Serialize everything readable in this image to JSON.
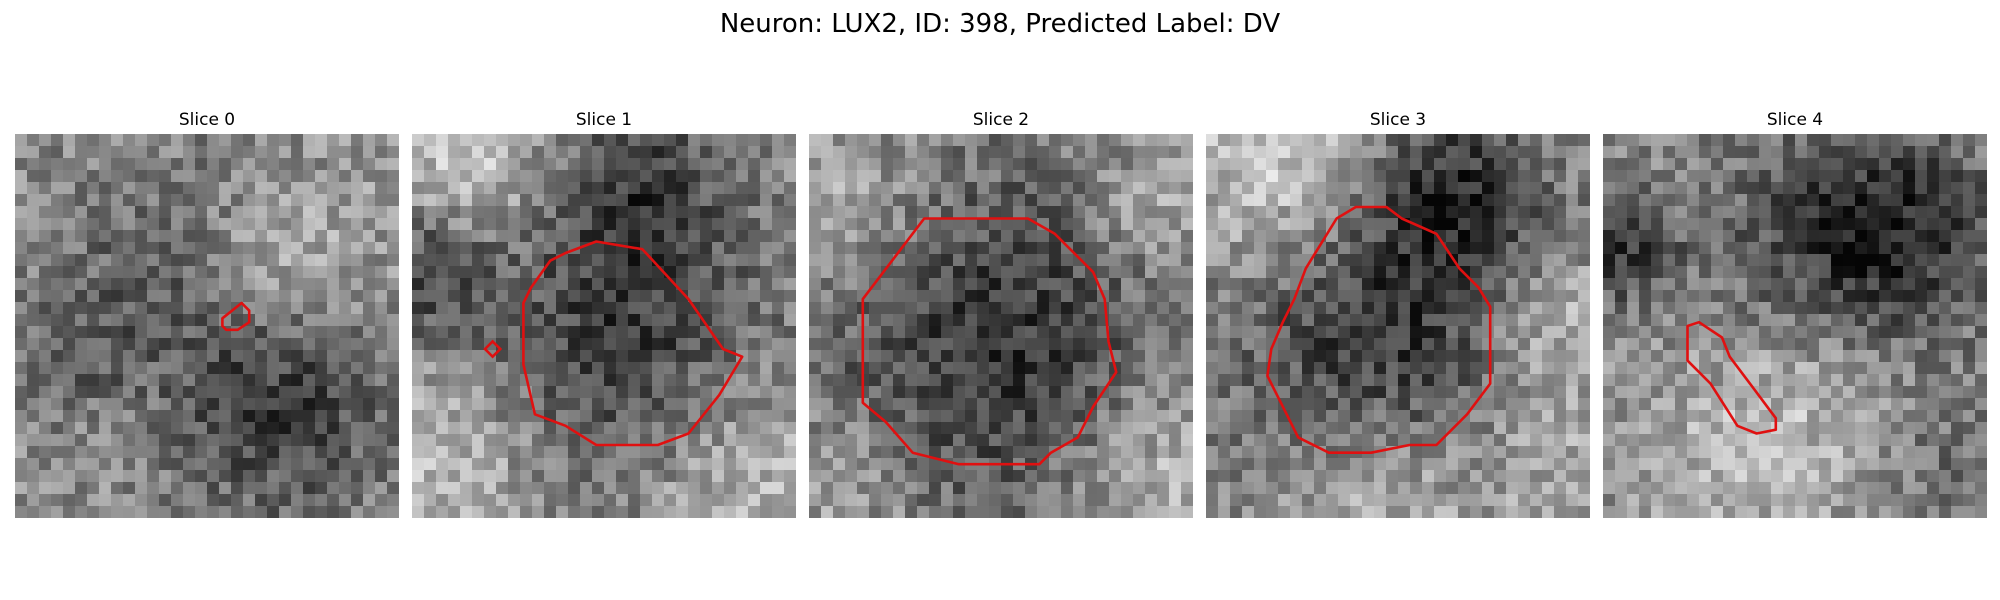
{
  "figure": {
    "title": "Neuron: LUX2, ID: 398, Predicted Label: DV"
  },
  "contour_color": "#e01010",
  "slices": [
    {
      "title": "Slice 0",
      "contour": [
        [
          0.54,
          0.48
        ],
        [
          0.59,
          0.44
        ],
        [
          0.61,
          0.46
        ],
        [
          0.61,
          0.49
        ],
        [
          0.58,
          0.51
        ],
        [
          0.55,
          0.51
        ],
        [
          0.54,
          0.5
        ]
      ],
      "blobs": [
        [
          0.45,
          0.36,
          0.2,
          -0.22
        ],
        [
          0.6,
          0.35,
          0.14,
          0.2
        ],
        [
          0.7,
          0.72,
          0.2,
          -0.3
        ],
        [
          0.15,
          0.55,
          0.12,
          -0.15
        ],
        [
          0.8,
          0.3,
          0.15,
          0.1
        ]
      ]
    },
    {
      "title": "Slice 1",
      "contour": [
        [
          0.29,
          0.44
        ],
        [
          0.31,
          0.4
        ],
        [
          0.36,
          0.33
        ],
        [
          0.4,
          0.31
        ],
        [
          0.48,
          0.28
        ],
        [
          0.6,
          0.3
        ],
        [
          0.72,
          0.43
        ],
        [
          0.81,
          0.56
        ],
        [
          0.86,
          0.58
        ],
        [
          0.8,
          0.68
        ],
        [
          0.72,
          0.78
        ],
        [
          0.64,
          0.81
        ],
        [
          0.48,
          0.81
        ],
        [
          0.4,
          0.76
        ],
        [
          0.32,
          0.73
        ],
        [
          0.29,
          0.6
        ]
      ],
      "small_contour": [
        [
          0.19,
          0.56
        ],
        [
          0.21,
          0.54
        ],
        [
          0.23,
          0.56
        ],
        [
          0.21,
          0.58
        ]
      ],
      "blobs": [
        [
          0.55,
          0.55,
          0.28,
          -0.32
        ],
        [
          0.6,
          0.15,
          0.15,
          -0.25
        ],
        [
          0.05,
          0.35,
          0.12,
          -0.28
        ],
        [
          0.15,
          0.1,
          0.15,
          0.25
        ],
        [
          0.1,
          0.85,
          0.18,
          0.22
        ],
        [
          0.85,
          0.9,
          0.2,
          0.22
        ]
      ]
    },
    {
      "title": "Slice 2",
      "contour": [
        [
          0.14,
          0.43
        ],
        [
          0.3,
          0.22
        ],
        [
          0.34,
          0.22
        ],
        [
          0.57,
          0.22
        ],
        [
          0.64,
          0.26
        ],
        [
          0.74,
          0.36
        ],
        [
          0.77,
          0.43
        ],
        [
          0.78,
          0.54
        ],
        [
          0.8,
          0.62
        ],
        [
          0.74,
          0.71
        ],
        [
          0.7,
          0.79
        ],
        [
          0.63,
          0.83
        ],
        [
          0.6,
          0.86
        ],
        [
          0.39,
          0.86
        ],
        [
          0.27,
          0.83
        ],
        [
          0.2,
          0.75
        ],
        [
          0.14,
          0.7
        ]
      ],
      "blobs": [
        [
          0.48,
          0.55,
          0.33,
          -0.35
        ],
        [
          0.1,
          0.2,
          0.15,
          0.2
        ],
        [
          0.9,
          0.9,
          0.18,
          0.22
        ],
        [
          0.1,
          0.9,
          0.15,
          0.15
        ],
        [
          0.9,
          0.2,
          0.12,
          0.18
        ]
      ]
    },
    {
      "title": "Slice 3",
      "contour": [
        [
          0.26,
          0.35
        ],
        [
          0.34,
          0.22
        ],
        [
          0.39,
          0.19
        ],
        [
          0.47,
          0.19
        ],
        [
          0.51,
          0.22
        ],
        [
          0.6,
          0.26
        ],
        [
          0.66,
          0.35
        ],
        [
          0.71,
          0.4
        ],
        [
          0.74,
          0.45
        ],
        [
          0.74,
          0.65
        ],
        [
          0.68,
          0.73
        ],
        [
          0.6,
          0.81
        ],
        [
          0.53,
          0.81
        ],
        [
          0.43,
          0.83
        ],
        [
          0.32,
          0.83
        ],
        [
          0.24,
          0.79
        ],
        [
          0.2,
          0.71
        ],
        [
          0.16,
          0.63
        ],
        [
          0.17,
          0.56
        ],
        [
          0.2,
          0.49
        ],
        [
          0.23,
          0.43
        ]
      ],
      "blobs": [
        [
          0.48,
          0.52,
          0.3,
          -0.38
        ],
        [
          0.65,
          0.15,
          0.15,
          -0.3
        ],
        [
          0.2,
          0.1,
          0.2,
          0.3
        ],
        [
          0.88,
          0.5,
          0.15,
          0.25
        ],
        [
          0.45,
          0.95,
          0.2,
          0.25
        ],
        [
          0.9,
          0.85,
          0.15,
          0.15
        ]
      ]
    },
    {
      "title": "Slice 4",
      "contour": [
        [
          0.22,
          0.5
        ],
        [
          0.25,
          0.49
        ],
        [
          0.31,
          0.53
        ],
        [
          0.33,
          0.58
        ],
        [
          0.39,
          0.66
        ],
        [
          0.42,
          0.7
        ],
        [
          0.45,
          0.74
        ],
        [
          0.45,
          0.77
        ],
        [
          0.4,
          0.78
        ],
        [
          0.35,
          0.76
        ],
        [
          0.28,
          0.65
        ],
        [
          0.22,
          0.59
        ]
      ],
      "blobs": [
        [
          0.6,
          0.3,
          0.22,
          -0.28
        ],
        [
          0.8,
          0.25,
          0.18,
          -0.25
        ],
        [
          0.05,
          0.3,
          0.1,
          -0.35
        ],
        [
          0.4,
          0.8,
          0.2,
          0.18
        ],
        [
          0.6,
          0.6,
          0.15,
          0.1
        ],
        [
          0.9,
          0.85,
          0.12,
          -0.12
        ]
      ]
    }
  ]
}
